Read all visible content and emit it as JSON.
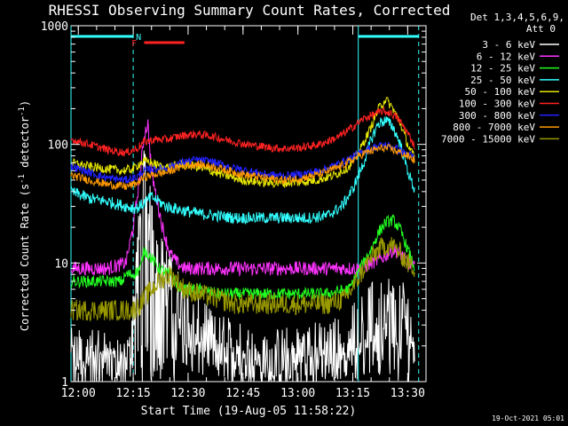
{
  "chart_data": {
    "type": "line",
    "title": "RHESSI Observing Summary Count Rates, Corrected",
    "xlabel": "Start Time (19-Aug-05 11:58:22)",
    "ylabel_parts": [
      "Corrected Count Rate (s",
      "-1",
      " detector",
      "-1",
      ")"
    ],
    "yscale": "log",
    "ylim": [
      1,
      1000
    ],
    "xlim_minutes": [
      0,
      97
    ],
    "x_ticks": [
      {
        "m": 2,
        "label": "12:00"
      },
      {
        "m": 17,
        "label": "12:15"
      },
      {
        "m": 32,
        "label": "12:30"
      },
      {
        "m": 47,
        "label": "12:45"
      },
      {
        "m": 62,
        "label": "13:00"
      },
      {
        "m": 77,
        "label": "13:15"
      },
      {
        "m": 92,
        "label": "13:30"
      }
    ],
    "y_ticks": [
      {
        "v": 1,
        "label": "1"
      },
      {
        "v": 10,
        "label": "10"
      },
      {
        "v": 100,
        "label": "100"
      },
      {
        "v": 1000,
        "label": "1000"
      }
    ],
    "legend_header": [
      "Det 1,3,4,5,6,9,",
      "Att 0"
    ],
    "legend_placement": "right",
    "series": [
      {
        "name": "3 - 6 keV",
        "color": "#ffffff",
        "points": [
          [
            0,
            1.5
          ],
          [
            10,
            1.4
          ],
          [
            15,
            1.2
          ],
          [
            16,
            1.5
          ],
          [
            18,
            10
          ],
          [
            20,
            50
          ],
          [
            22,
            20
          ],
          [
            24,
            10
          ],
          [
            27,
            7
          ],
          [
            29,
            5
          ],
          [
            31,
            4
          ],
          [
            33,
            3
          ],
          [
            36,
            2.5
          ],
          [
            40,
            2
          ],
          [
            45,
            1.8
          ],
          [
            50,
            1.6
          ],
          [
            55,
            1.5
          ],
          [
            60,
            1.6
          ],
          [
            65,
            1.7
          ],
          [
            70,
            1.8
          ],
          [
            74,
            2.0
          ],
          [
            76,
            2.2
          ],
          [
            78,
            3.0
          ],
          [
            81,
            3.5
          ],
          [
            84,
            4.0
          ],
          [
            87,
            4.5
          ],
          [
            89,
            4.5
          ],
          [
            91,
            4.0
          ],
          [
            93,
            3.0
          ],
          [
            94,
            2.5
          ]
        ]
      },
      {
        "name": "6 - 12 keV",
        "color": "#ff33ff",
        "points": [
          [
            0,
            9
          ],
          [
            10,
            9
          ],
          [
            15,
            10
          ],
          [
            17,
            20
          ],
          [
            19,
            60
          ],
          [
            20,
            120
          ],
          [
            21,
            150
          ],
          [
            22,
            60
          ],
          [
            23,
            40
          ],
          [
            25,
            20
          ],
          [
            27,
            12
          ],
          [
            29,
            10
          ],
          [
            31,
            9
          ],
          [
            40,
            9
          ],
          [
            50,
            9
          ],
          [
            60,
            9
          ],
          [
            70,
            9
          ],
          [
            76,
            9
          ],
          [
            79,
            9
          ],
          [
            82,
            10
          ],
          [
            85,
            11
          ],
          [
            88,
            13
          ],
          [
            90,
            12
          ],
          [
            92,
            10
          ],
          [
            94,
            9
          ]
        ]
      },
      {
        "name": "12 - 25 keV",
        "color": "#22ff22",
        "points": [
          [
            0,
            7
          ],
          [
            10,
            7
          ],
          [
            14,
            7
          ],
          [
            15,
            8
          ],
          [
            17,
            8
          ],
          [
            19,
            9
          ],
          [
            20,
            13
          ],
          [
            21,
            12
          ],
          [
            24,
            9
          ],
          [
            27,
            8
          ],
          [
            30,
            6
          ],
          [
            35,
            6
          ],
          [
            40,
            5.5
          ],
          [
            50,
            5.5
          ],
          [
            60,
            5.5
          ],
          [
            70,
            5.5
          ],
          [
            76,
            6
          ],
          [
            79,
            9
          ],
          [
            82,
            13
          ],
          [
            84,
            18
          ],
          [
            86,
            22
          ],
          [
            88,
            23
          ],
          [
            90,
            19
          ],
          [
            92,
            13
          ],
          [
            94,
            9
          ]
        ]
      },
      {
        "name": "25 - 50 keV",
        "color": "#33ffff",
        "points": [
          [
            0,
            40
          ],
          [
            5,
            35
          ],
          [
            10,
            33
          ],
          [
            15,
            30
          ],
          [
            18,
            29
          ],
          [
            20,
            32
          ],
          [
            22,
            36
          ],
          [
            24,
            33
          ],
          [
            26,
            30
          ],
          [
            30,
            28
          ],
          [
            35,
            26
          ],
          [
            40,
            25
          ],
          [
            45,
            24
          ],
          [
            50,
            24
          ],
          [
            55,
            24
          ],
          [
            60,
            24
          ],
          [
            65,
            24
          ],
          [
            70,
            25
          ],
          [
            74,
            30
          ],
          [
            77,
            42
          ],
          [
            80,
            70
          ],
          [
            82,
            110
          ],
          [
            84,
            150
          ],
          [
            86,
            160
          ],
          [
            88,
            140
          ],
          [
            90,
            100
          ],
          [
            92,
            60
          ],
          [
            94,
            40
          ]
        ]
      },
      {
        "name": "50 - 100 keV",
        "color": "#e6e600",
        "points": [
          [
            0,
            70
          ],
          [
            5,
            65
          ],
          [
            10,
            62
          ],
          [
            14,
            60
          ],
          [
            17,
            62
          ],
          [
            19,
            70
          ],
          [
            21,
            72
          ],
          [
            23,
            68
          ],
          [
            25,
            64
          ],
          [
            28,
            65
          ],
          [
            31,
            68
          ],
          [
            34,
            65
          ],
          [
            38,
            60
          ],
          [
            42,
            55
          ],
          [
            47,
            50
          ],
          [
            52,
            48
          ],
          [
            57,
            47
          ],
          [
            62,
            48
          ],
          [
            67,
            50
          ],
          [
            72,
            55
          ],
          [
            76,
            65
          ],
          [
            79,
            90
          ],
          [
            82,
            140
          ],
          [
            84,
            200
          ],
          [
            86,
            240
          ],
          [
            88,
            200
          ],
          [
            90,
            150
          ],
          [
            92,
            100
          ],
          [
            94,
            75
          ]
        ]
      },
      {
        "name": "100 - 300 keV",
        "color": "#ff2222",
        "points": [
          [
            0,
            110
          ],
          [
            5,
            100
          ],
          [
            10,
            90
          ],
          [
            15,
            85
          ],
          [
            18,
            92
          ],
          [
            20,
            105
          ],
          [
            23,
            110
          ],
          [
            26,
            110
          ],
          [
            30,
            118
          ],
          [
            34,
            122
          ],
          [
            38,
            118
          ],
          [
            43,
            108
          ],
          [
            48,
            100
          ],
          [
            53,
            95
          ],
          [
            58,
            92
          ],
          [
            63,
            94
          ],
          [
            68,
            100
          ],
          [
            73,
            115
          ],
          [
            77,
            140
          ],
          [
            80,
            165
          ],
          [
            83,
            180
          ],
          [
            85,
            190
          ],
          [
            87,
            185
          ],
          [
            89,
            170
          ],
          [
            91,
            140
          ],
          [
            93,
            110
          ],
          [
            94,
            95
          ]
        ]
      },
      {
        "name": "300 - 800 keV",
        "color": "#2222ff",
        "points": [
          [
            0,
            65
          ],
          [
            5,
            58
          ],
          [
            10,
            52
          ],
          [
            15,
            50
          ],
          [
            18,
            53
          ],
          [
            20,
            60
          ],
          [
            23,
            62
          ],
          [
            26,
            63
          ],
          [
            30,
            70
          ],
          [
            34,
            74
          ],
          [
            38,
            72
          ],
          [
            43,
            65
          ],
          [
            48,
            60
          ],
          [
            53,
            56
          ],
          [
            58,
            54
          ],
          [
            63,
            56
          ],
          [
            68,
            60
          ],
          [
            73,
            68
          ],
          [
            77,
            78
          ],
          [
            80,
            88
          ],
          [
            83,
            95
          ],
          [
            85,
            98
          ],
          [
            87,
            97
          ],
          [
            89,
            92
          ],
          [
            91,
            85
          ],
          [
            93,
            80
          ],
          [
            94,
            75
          ]
        ]
      },
      {
        "name": "800 - 7000 keV",
        "color": "#ff9900",
        "points": [
          [
            0,
            55
          ],
          [
            5,
            50
          ],
          [
            10,
            46
          ],
          [
            15,
            44
          ],
          [
            18,
            47
          ],
          [
            20,
            53
          ],
          [
            23,
            56
          ],
          [
            26,
            58
          ],
          [
            30,
            65
          ],
          [
            34,
            68
          ],
          [
            38,
            66
          ],
          [
            43,
            60
          ],
          [
            48,
            55
          ],
          [
            53,
            52
          ],
          [
            58,
            50
          ],
          [
            63,
            52
          ],
          [
            68,
            56
          ],
          [
            73,
            64
          ],
          [
            77,
            74
          ],
          [
            80,
            84
          ],
          [
            83,
            90
          ],
          [
            85,
            93
          ],
          [
            87,
            92
          ],
          [
            89,
            88
          ],
          [
            91,
            82
          ],
          [
            93,
            77
          ],
          [
            94,
            72
          ]
        ]
      },
      {
        "name": "7000 - 15000 keV",
        "color": "#999900",
        "points": [
          [
            0,
            4
          ],
          [
            10,
            4
          ],
          [
            15,
            4
          ],
          [
            17,
            4
          ],
          [
            19,
            4.5
          ],
          [
            21,
            5.5
          ],
          [
            24,
            7
          ],
          [
            27,
            8
          ],
          [
            29,
            7
          ],
          [
            31,
            6
          ],
          [
            35,
            5.5
          ],
          [
            40,
            5
          ],
          [
            45,
            4.5
          ],
          [
            50,
            4.5
          ],
          [
            55,
            4.5
          ],
          [
            60,
            4.5
          ],
          [
            65,
            4.5
          ],
          [
            70,
            4.5
          ],
          [
            75,
            5
          ],
          [
            78,
            7
          ],
          [
            81,
            10
          ],
          [
            84,
            13
          ],
          [
            86,
            14
          ],
          [
            88,
            14
          ],
          [
            90,
            12
          ],
          [
            92,
            10
          ],
          [
            94,
            9
          ]
        ]
      }
    ],
    "annotations": {
      "letters": [
        {
          "text": "N",
          "color": "#33ffff"
        },
        {
          "text": "F",
          "color": "#ff2222"
        }
      ],
      "bars": [
        {
          "name": "night-1",
          "color": "#33ffff",
          "start_m": 0,
          "end_m": 17
        },
        {
          "name": "night-2",
          "color": "#33ffff",
          "start_m": 78.5,
          "end_m": 95
        },
        {
          "name": "flare",
          "color": "#ff2222",
          "start_m": 20,
          "end_m": 31
        }
      ],
      "vlines": [
        {
          "m": 0,
          "style": "solid",
          "color": "#33ffff"
        },
        {
          "m": 17,
          "style": "dashed",
          "color": "#33ffff"
        },
        {
          "m": 78.5,
          "style": "solid",
          "color": "#33ffff"
        },
        {
          "m": 95,
          "style": "dashed",
          "color": "#33ffff"
        }
      ]
    },
    "footer_stamp": "19-Oct-2021 05:01"
  }
}
